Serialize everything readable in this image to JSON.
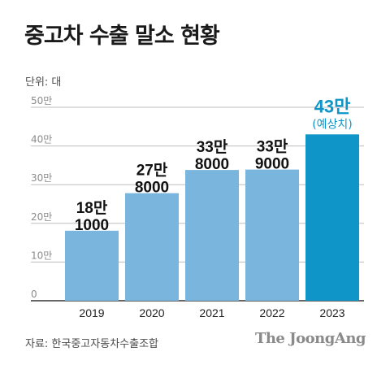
{
  "header": {
    "title": "중고차 수출 말소 현황"
  },
  "unit_label": "단위: 대",
  "source": "자료: 한국중고자동차수출조합",
  "brand": "The JoongAng",
  "colors": {
    "bar": "#7ab5dd",
    "highlight": "#0f95c8",
    "grid": "#bdbdbd",
    "axis": "#333333",
    "tick_text": "#8a8a8a"
  },
  "chart_data": {
    "type": "bar",
    "title": "중고차 수출 말소 현황",
    "unit": "단위: 대",
    "categories": [
      "2019",
      "2020",
      "2021",
      "2022",
      "2023"
    ],
    "values": [
      181000,
      278000,
      338000,
      339000,
      430000
    ],
    "value_labels": [
      [
        "18만",
        "1000"
      ],
      [
        "27만",
        "8000"
      ],
      [
        "33만",
        "8000"
      ],
      [
        "33만",
        "9000"
      ],
      [
        "43만",
        "(예상치)"
      ]
    ],
    "highlight_index": 4,
    "ylim": [
      0,
      500000
    ],
    "yticks": [
      {
        "value": 0,
        "label": "0"
      },
      {
        "value": 100000,
        "label": "10만"
      },
      {
        "value": 200000,
        "label": "20만"
      },
      {
        "value": 300000,
        "label": "30만"
      },
      {
        "value": 400000,
        "label": "40만"
      },
      {
        "value": 500000,
        "label": "50만"
      }
    ],
    "grid": true,
    "legend": "none"
  }
}
